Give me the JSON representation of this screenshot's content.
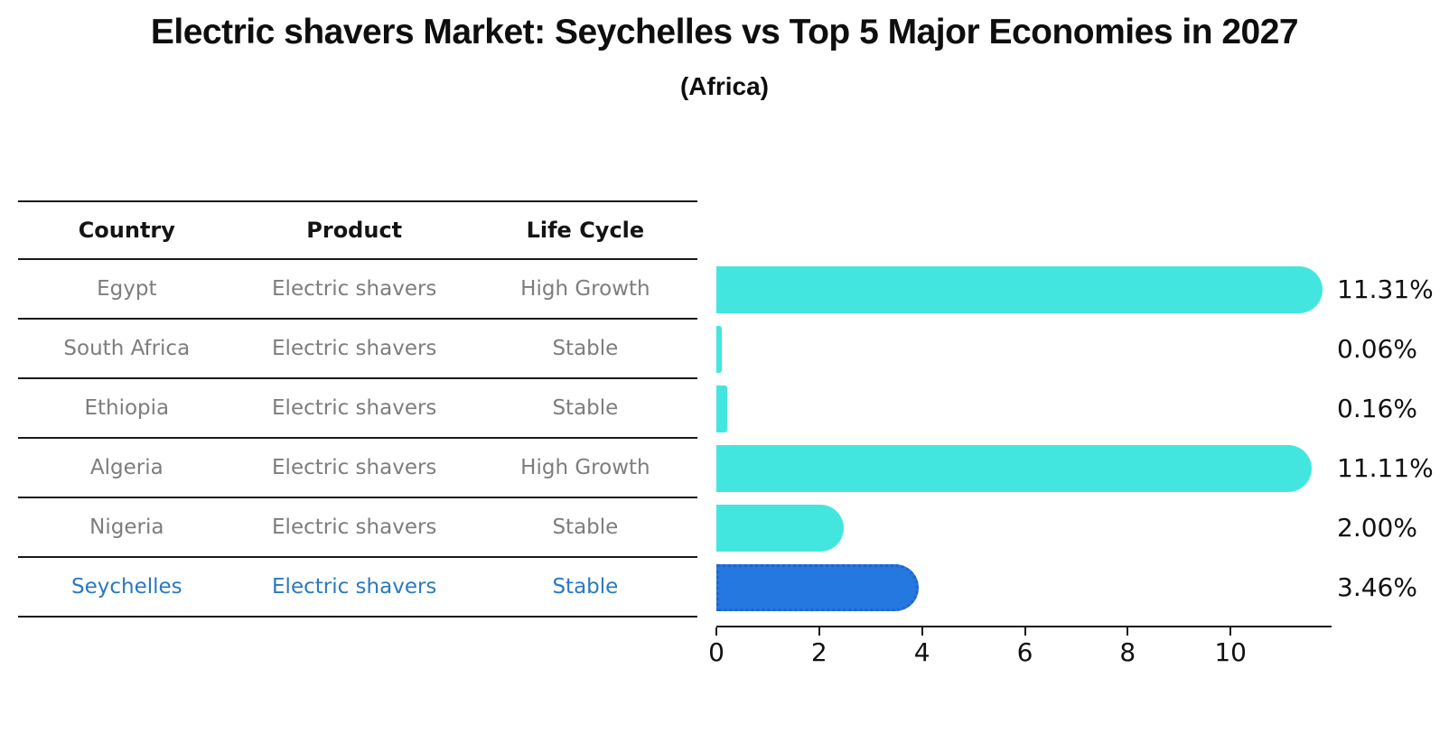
{
  "title": "Electric shavers Market: Seychelles vs Top 5 Major Economies in 2027",
  "subtitle": "(Africa)",
  "table": {
    "headers": [
      "Country",
      "Product",
      "Life Cycle"
    ],
    "rows": [
      {
        "country": "Egypt",
        "product": "Electric shavers",
        "life_cycle": "High Growth",
        "highlight": false
      },
      {
        "country": "South Africa",
        "product": "Electric shavers",
        "life_cycle": "Stable",
        "highlight": false
      },
      {
        "country": "Ethiopia",
        "product": "Electric shavers",
        "life_cycle": "Stable",
        "highlight": false
      },
      {
        "country": "Algeria",
        "product": "Electric shavers",
        "life_cycle": "High Growth",
        "highlight": false
      },
      {
        "country": "Nigeria",
        "product": "Electric shavers",
        "life_cycle": "Stable",
        "highlight": true
      }
    ]
  },
  "chart_data": {
    "type": "bar",
    "orientation": "horizontal",
    "title": "Electric shavers Market: Seychelles vs Top 5 Major Economies in 2027 (Africa)",
    "categories": [
      "Egypt",
      "South Africa",
      "Ethiopia",
      "Algeria",
      "Nigeria",
      "Seychelles"
    ],
    "values": [
      11.31,
      0.06,
      0.16,
      11.11,
      2.0,
      3.46
    ],
    "value_labels": [
      "11.31%",
      "0.06%",
      "0.16%",
      "11.11%",
      "2.00%",
      "3.46%"
    ],
    "x_ticks": [
      0,
      2,
      4,
      6,
      8,
      10
    ],
    "xlim": [
      0,
      11.93
    ],
    "grid": false,
    "legend": false,
    "highlight_index": 5,
    "bar_color": "#43e6df",
    "highlight_fill": "#2478e0",
    "highlight_border": "#1f63ce"
  },
  "colors": {
    "text_dark": "#111111",
    "text_gray": "#7d7d7d",
    "text_blue": "#2979c0",
    "line": "#1a1a1a",
    "background": "#ffffff"
  }
}
